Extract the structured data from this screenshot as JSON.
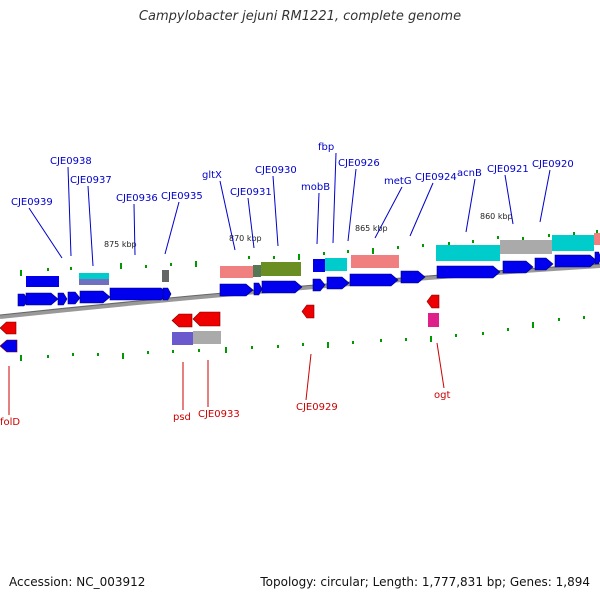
{
  "title": "Campylobacter jejuni RM1221, complete genome",
  "footer": {
    "accession": "Accession: NC_003912",
    "summary": "Topology: circular; Length: 1,777,831 bp; Genes: 1,894"
  },
  "colors": {
    "forward_label": "#0000cc",
    "reverse_label": "#cc0000",
    "cds": "#0000ee",
    "reverse_cds": "#ee0000",
    "backbone": "#888888",
    "gc_tick": "#009900",
    "rrna": "#f08080",
    "trna": "#00cccc",
    "olive": "#6b8e23",
    "gray": "#aaaaaa",
    "purple": "#6a5acd",
    "magenta": "#e0208a"
  },
  "kbp_ticks": [
    "875 kbp",
    "870 kbp",
    "865 kbp",
    "860 kbp"
  ],
  "forward_genes": [
    {
      "name": "CJE0939",
      "id": "cje0939"
    },
    {
      "name": "CJE0938",
      "id": "cje0938"
    },
    {
      "name": "CJE0937",
      "id": "cje0937"
    },
    {
      "name": "CJE0936",
      "id": "cje0936"
    },
    {
      "name": "CJE0935",
      "id": "cje0935"
    },
    {
      "name": "gltX",
      "id": "gltx"
    },
    {
      "name": "CJE0931",
      "id": "cje0931"
    },
    {
      "name": "CJE0930",
      "id": "cje0930"
    },
    {
      "name": "mobB",
      "id": "mobb"
    },
    {
      "name": "fbp",
      "id": "fbp"
    },
    {
      "name": "CJE0926",
      "id": "cje0926"
    },
    {
      "name": "metG",
      "id": "metg"
    },
    {
      "name": "CJE0924",
      "id": "cje0924"
    },
    {
      "name": "acnB",
      "id": "acnb"
    },
    {
      "name": "CJE0921",
      "id": "cje0921"
    },
    {
      "name": "CJE0920",
      "id": "cje0920"
    }
  ],
  "reverse_genes": [
    {
      "name": "folD",
      "id": "fold"
    },
    {
      "name": "psd",
      "id": "psd"
    },
    {
      "name": "CJE0933",
      "id": "cje0933"
    },
    {
      "name": "CJE0929",
      "id": "cje0929"
    },
    {
      "name": "ogt",
      "id": "ogt"
    }
  ]
}
